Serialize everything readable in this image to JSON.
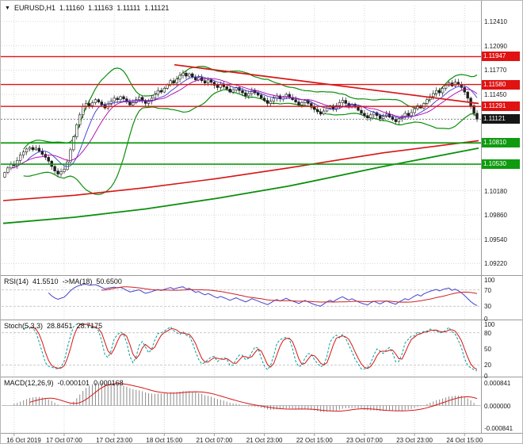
{
  "header": {
    "dropdown_icon": "▼",
    "symbol": "EURUSD,H1",
    "open": "1.11160",
    "high": "1.11163",
    "low": "1.11111",
    "close": "1.11121"
  },
  "colors": {
    "resistance": "#e01212",
    "support": "#0f9b0f",
    "current": "#161616",
    "bb": "#0b8f0b",
    "ma_fast": "#3a3ad0",
    "ma_mid": "#b000b0",
    "trend_down": "#d81414",
    "ma_long_red": "#d81414",
    "ma_long_green": "#0b8f0b",
    "rsi": "#4343cf",
    "rsi_ma": "#cc2222",
    "stoch_k": "#009f9f",
    "stoch_d": "#d81414",
    "macd_hist": "#8b8b8b",
    "macd_signal": "#d81414",
    "grid": "#d6d6d6",
    "axis_text": "#1a1a1a"
  },
  "price_axis": {
    "labels": [
      "1.12410",
      "1.12090",
      "1.11770",
      "1.11450",
      "1.10180",
      "1.09860",
      "1.09540",
      "1.09220"
    ],
    "grid_values": [
      1.1241,
      1.1209,
      1.1177,
      1.1145,
      1.1113,
      1.1081,
      1.1049,
      1.1018,
      1.0986,
      1.0954,
      1.0922
    ]
  },
  "levels": [
    {
      "label": "1.11947",
      "value": 1.11947,
      "kind": "resistance"
    },
    {
      "label": "1.11580",
      "value": 1.1158,
      "kind": "resistance"
    },
    {
      "label": "1.11291",
      "value": 1.11291,
      "kind": "resistance"
    },
    {
      "label": "1.10810",
      "value": 1.1081,
      "kind": "support"
    },
    {
      "label": "1.10530",
      "value": 1.1053,
      "kind": "support"
    }
  ],
  "current_price": {
    "label": "1.11121",
    "value": 1.11121
  },
  "time_axis": {
    "labels": [
      "16 Oct 2019",
      "17 Oct 07:00",
      "17 Oct 23:00",
      "18 Oct 15:00",
      "21 Oct 07:00",
      "21 Oct 23:00",
      "22 Oct 15:00",
      "23 Oct 07:00",
      "23 Oct 23:00",
      "24 Oct 15:00"
    ],
    "tick_indices": [
      3,
      19,
      35,
      51,
      67,
      83,
      99,
      115,
      131,
      147
    ]
  },
  "indicators": {
    "rsi": {
      "title": "RSI(14)",
      "value": "41.5510",
      "ma_title": "->MA(18)",
      "ma_value": "50.6500",
      "axis": [
        "100",
        "70",
        "30",
        "0"
      ],
      "levels": [
        70,
        30
      ],
      "period": 14,
      "ma_period": 18
    },
    "stoch": {
      "title": "Stoch(5,3,3)",
      "k_value": "28.8451",
      "d_value": "28.7175",
      "axis": [
        "100",
        "80",
        "50",
        "20",
        "0"
      ],
      "levels": [
        80,
        20
      ],
      "k": 5,
      "slowing": 3,
      "d": 3
    },
    "macd": {
      "title": "MACD(12,26,9)",
      "value": "-0.000101",
      "signal_value": "0.000168",
      "axis": [
        "0.000841",
        "0.000000",
        "-0.000841"
      ],
      "fast": 12,
      "slow": 26,
      "signal": 9
    }
  },
  "chart_data": {
    "type": "candlestick",
    "symbol": "EURUSD",
    "timeframe": "H1",
    "title": "EURUSD,H1",
    "x_range": [
      "16 Oct 2019",
      "24 Oct 15:00"
    ],
    "x_tick_labels": [
      "16 Oct 2019",
      "17 Oct 07:00",
      "17 Oct 23:00",
      "18 Oct 15:00",
      "21 Oct 07:00",
      "21 Oct 23:00",
      "22 Oct 15:00",
      "23 Oct 07:00",
      "23 Oct 23:00",
      "24 Oct 15:00"
    ],
    "y_range": [
      1.0912,
      1.1262
    ],
    "last_bar": {
      "open": 1.1116,
      "high": 1.11163,
      "low": 1.11111,
      "close": 1.11121
    },
    "resistance_levels": [
      1.11947,
      1.1158,
      1.11291
    ],
    "support_levels": [
      1.1081,
      1.1053
    ],
    "closes": [
      1.1042,
      1.1048,
      1.1053,
      1.1051,
      1.1058,
      1.1065,
      1.1069,
      1.1073,
      1.1075,
      1.1072,
      1.1074,
      1.107,
      1.1066,
      1.1062,
      1.1057,
      1.105,
      1.1044,
      1.104,
      1.1043,
      1.1046,
      1.1056,
      1.1072,
      1.1089,
      1.1105,
      1.1118,
      1.1129,
      1.1133,
      1.113,
      1.1134,
      1.1138,
      1.1135,
      1.1131,
      1.1127,
      1.1132,
      1.1136,
      1.114,
      1.1138,
      1.1142,
      1.1139,
      1.1135,
      1.1131,
      1.1134,
      1.1138,
      1.1141,
      1.1137,
      1.1133,
      1.1136,
      1.114,
      1.1145,
      1.115,
      1.1148,
      1.1153,
      1.1158,
      1.1163,
      1.116,
      1.1165,
      1.117,
      1.1173,
      1.1169,
      1.1172,
      1.1168,
      1.1164,
      1.1167,
      1.1163,
      1.116,
      1.1164,
      1.1161,
      1.1157,
      1.1154,
      1.1158,
      1.1155,
      1.1152,
      1.1148,
      1.1151,
      1.1154,
      1.115,
      1.1147,
      1.1143,
      1.1146,
      1.115,
      1.1147,
      1.1144,
      1.114,
      1.1137,
      1.1133,
      1.1136,
      1.114,
      1.1143,
      1.1139,
      1.1142,
      1.1145,
      1.1141,
      1.1138,
      1.1135,
      1.1131,
      1.1134,
      1.1137,
      1.1133,
      1.1129,
      1.1125,
      1.1122,
      1.1119,
      1.1123,
      1.1127,
      1.113,
      1.1126,
      1.113,
      1.1134,
      1.1137,
      1.1133,
      1.1129,
      1.1132,
      1.1128,
      1.1124,
      1.112,
      1.1117,
      1.1114,
      1.1118,
      1.1121,
      1.1117,
      1.1113,
      1.1116,
      1.1119,
      1.1115,
      1.1112,
      1.1109,
      1.1113,
      1.1116,
      1.112,
      1.1117,
      1.1121,
      1.1126,
      1.113,
      1.1127,
      1.1133,
      1.1138,
      1.1142,
      1.1146,
      1.115,
      1.1147,
      1.1153,
      1.1157,
      1.116,
      1.1156,
      1.1161,
      1.1158,
      1.1154,
      1.1148,
      1.114,
      1.113,
      1.112,
      1.11121
    ],
    "overlays": {
      "bollinger": {
        "period": 20,
        "deviation": 2
      },
      "ma_fast_period": 8,
      "ma_mid_period": 13,
      "trendline_down": {
        "points": [
          [
            0.36,
            1.1184
          ],
          [
            1.0,
            1.1133
          ]
        ]
      },
      "ma_long_red": {
        "points": [
          [
            0,
            1.1005
          ],
          [
            0.15,
            1.1012
          ],
          [
            0.3,
            1.1022
          ],
          [
            0.45,
            1.1034
          ],
          [
            0.6,
            1.1048
          ],
          [
            0.8,
            1.1068
          ],
          [
            1,
            1.1084
          ]
        ]
      },
      "ma_long_green": {
        "points": [
          [
            0,
            1.0975
          ],
          [
            0.15,
            1.0983
          ],
          [
            0.3,
            1.0994
          ],
          [
            0.45,
            1.1008
          ],
          [
            0.6,
            1.1024
          ],
          [
            0.8,
            1.105
          ],
          [
            1,
            1.1074
          ]
        ]
      }
    }
  }
}
